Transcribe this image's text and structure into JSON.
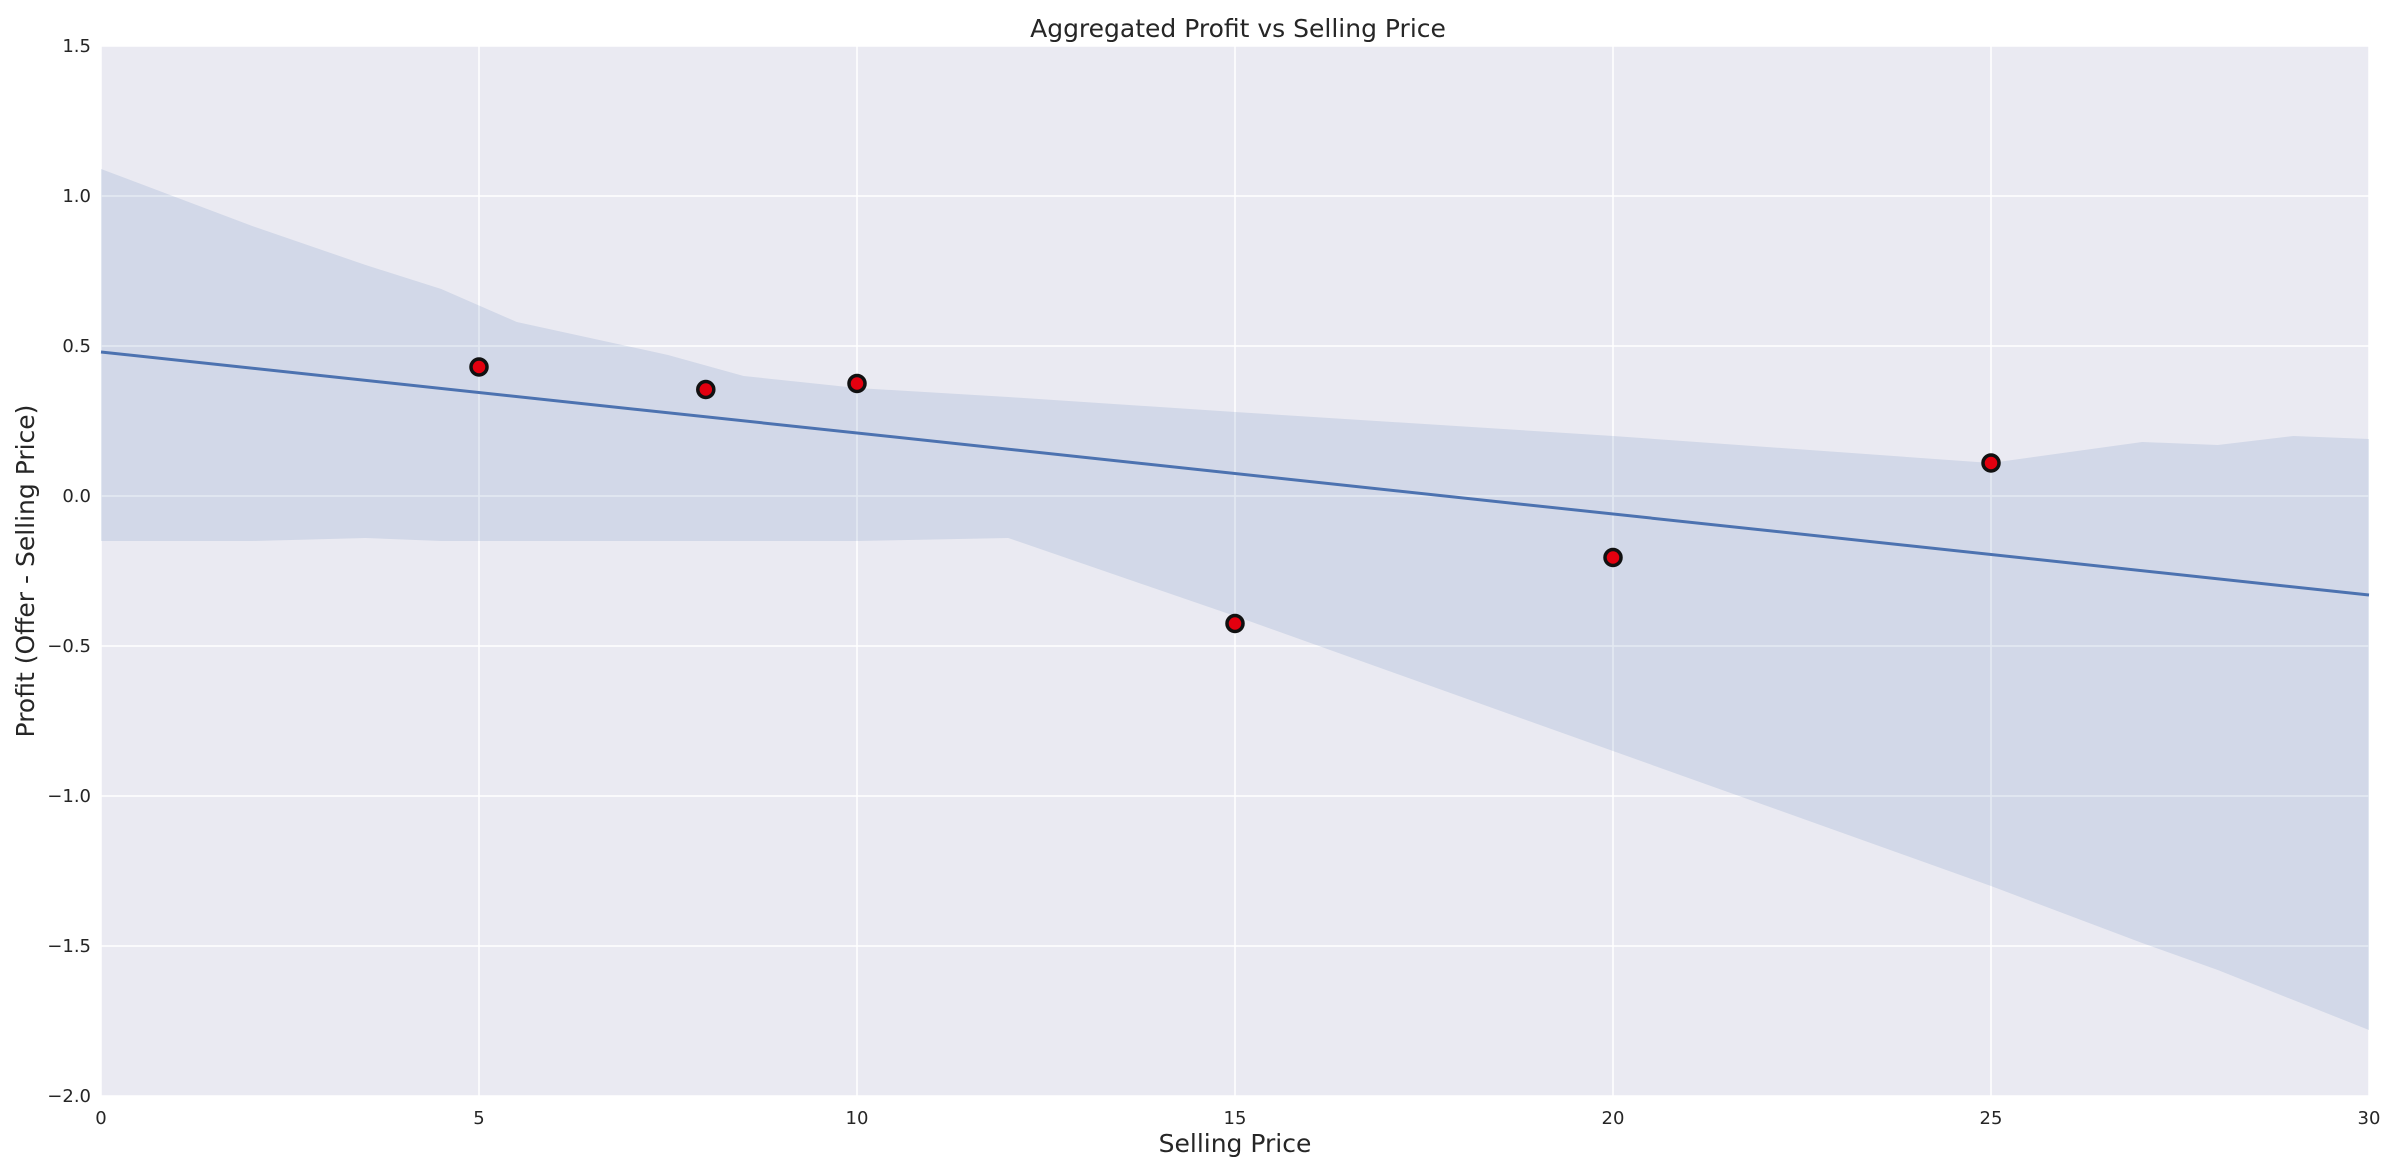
{
  "chart_data": {
    "type": "scatter",
    "title": "Aggregated Profit vs Selling Price",
    "xlabel": "Selling Price",
    "ylabel": "Profit (Offer - Selling Price)",
    "xlim": [
      0,
      30
    ],
    "ylim": [
      -2.0,
      1.5
    ],
    "x_ticks": [
      0,
      5,
      10,
      15,
      20,
      25,
      30
    ],
    "y_ticks": [
      -2.0,
      -1.5,
      -1.0,
      -0.5,
      0.0,
      0.5,
      1.0,
      1.5
    ],
    "x_tick_labels": [
      "0",
      "5",
      "10",
      "15",
      "20",
      "25",
      "30"
    ],
    "y_tick_labels": [
      "−2.0",
      "−1.5",
      "−1.0",
      "−0.5",
      "0.0",
      "0.5",
      "1.0",
      "1.5"
    ],
    "grid": true,
    "points": {
      "x": [
        5,
        8,
        10,
        15,
        20,
        25
      ],
      "y": [
        0.43,
        0.355,
        0.375,
        -0.425,
        -0.205,
        0.11
      ],
      "color": "#e3000f",
      "edge_color": "#111111"
    },
    "regression": {
      "x": [
        0,
        30
      ],
      "y": [
        0.48,
        -0.33
      ],
      "color": "#4c72b0"
    },
    "confidence_band": {
      "color": "#4c72b0",
      "x": [
        0,
        2,
        3.5,
        4.5,
        5.5,
        7.5,
        8.5,
        10,
        12,
        15,
        20,
        25,
        27,
        28,
        29,
        30
      ],
      "upper": [
        1.09,
        0.9,
        0.77,
        0.69,
        0.58,
        0.47,
        0.4,
        0.36,
        0.33,
        0.28,
        0.2,
        0.11,
        0.18,
        0.17,
        0.2,
        0.19
      ],
      "lower": [
        -0.15,
        -0.15,
        -0.14,
        -0.15,
        -0.15,
        -0.15,
        -0.15,
        -0.15,
        -0.14,
        -0.4,
        -0.85,
        -1.3,
        -1.49,
        -1.58,
        -1.68,
        -1.78
      ]
    },
    "background_color": "#eaeaf2",
    "grid_color": "#ffffff"
  }
}
